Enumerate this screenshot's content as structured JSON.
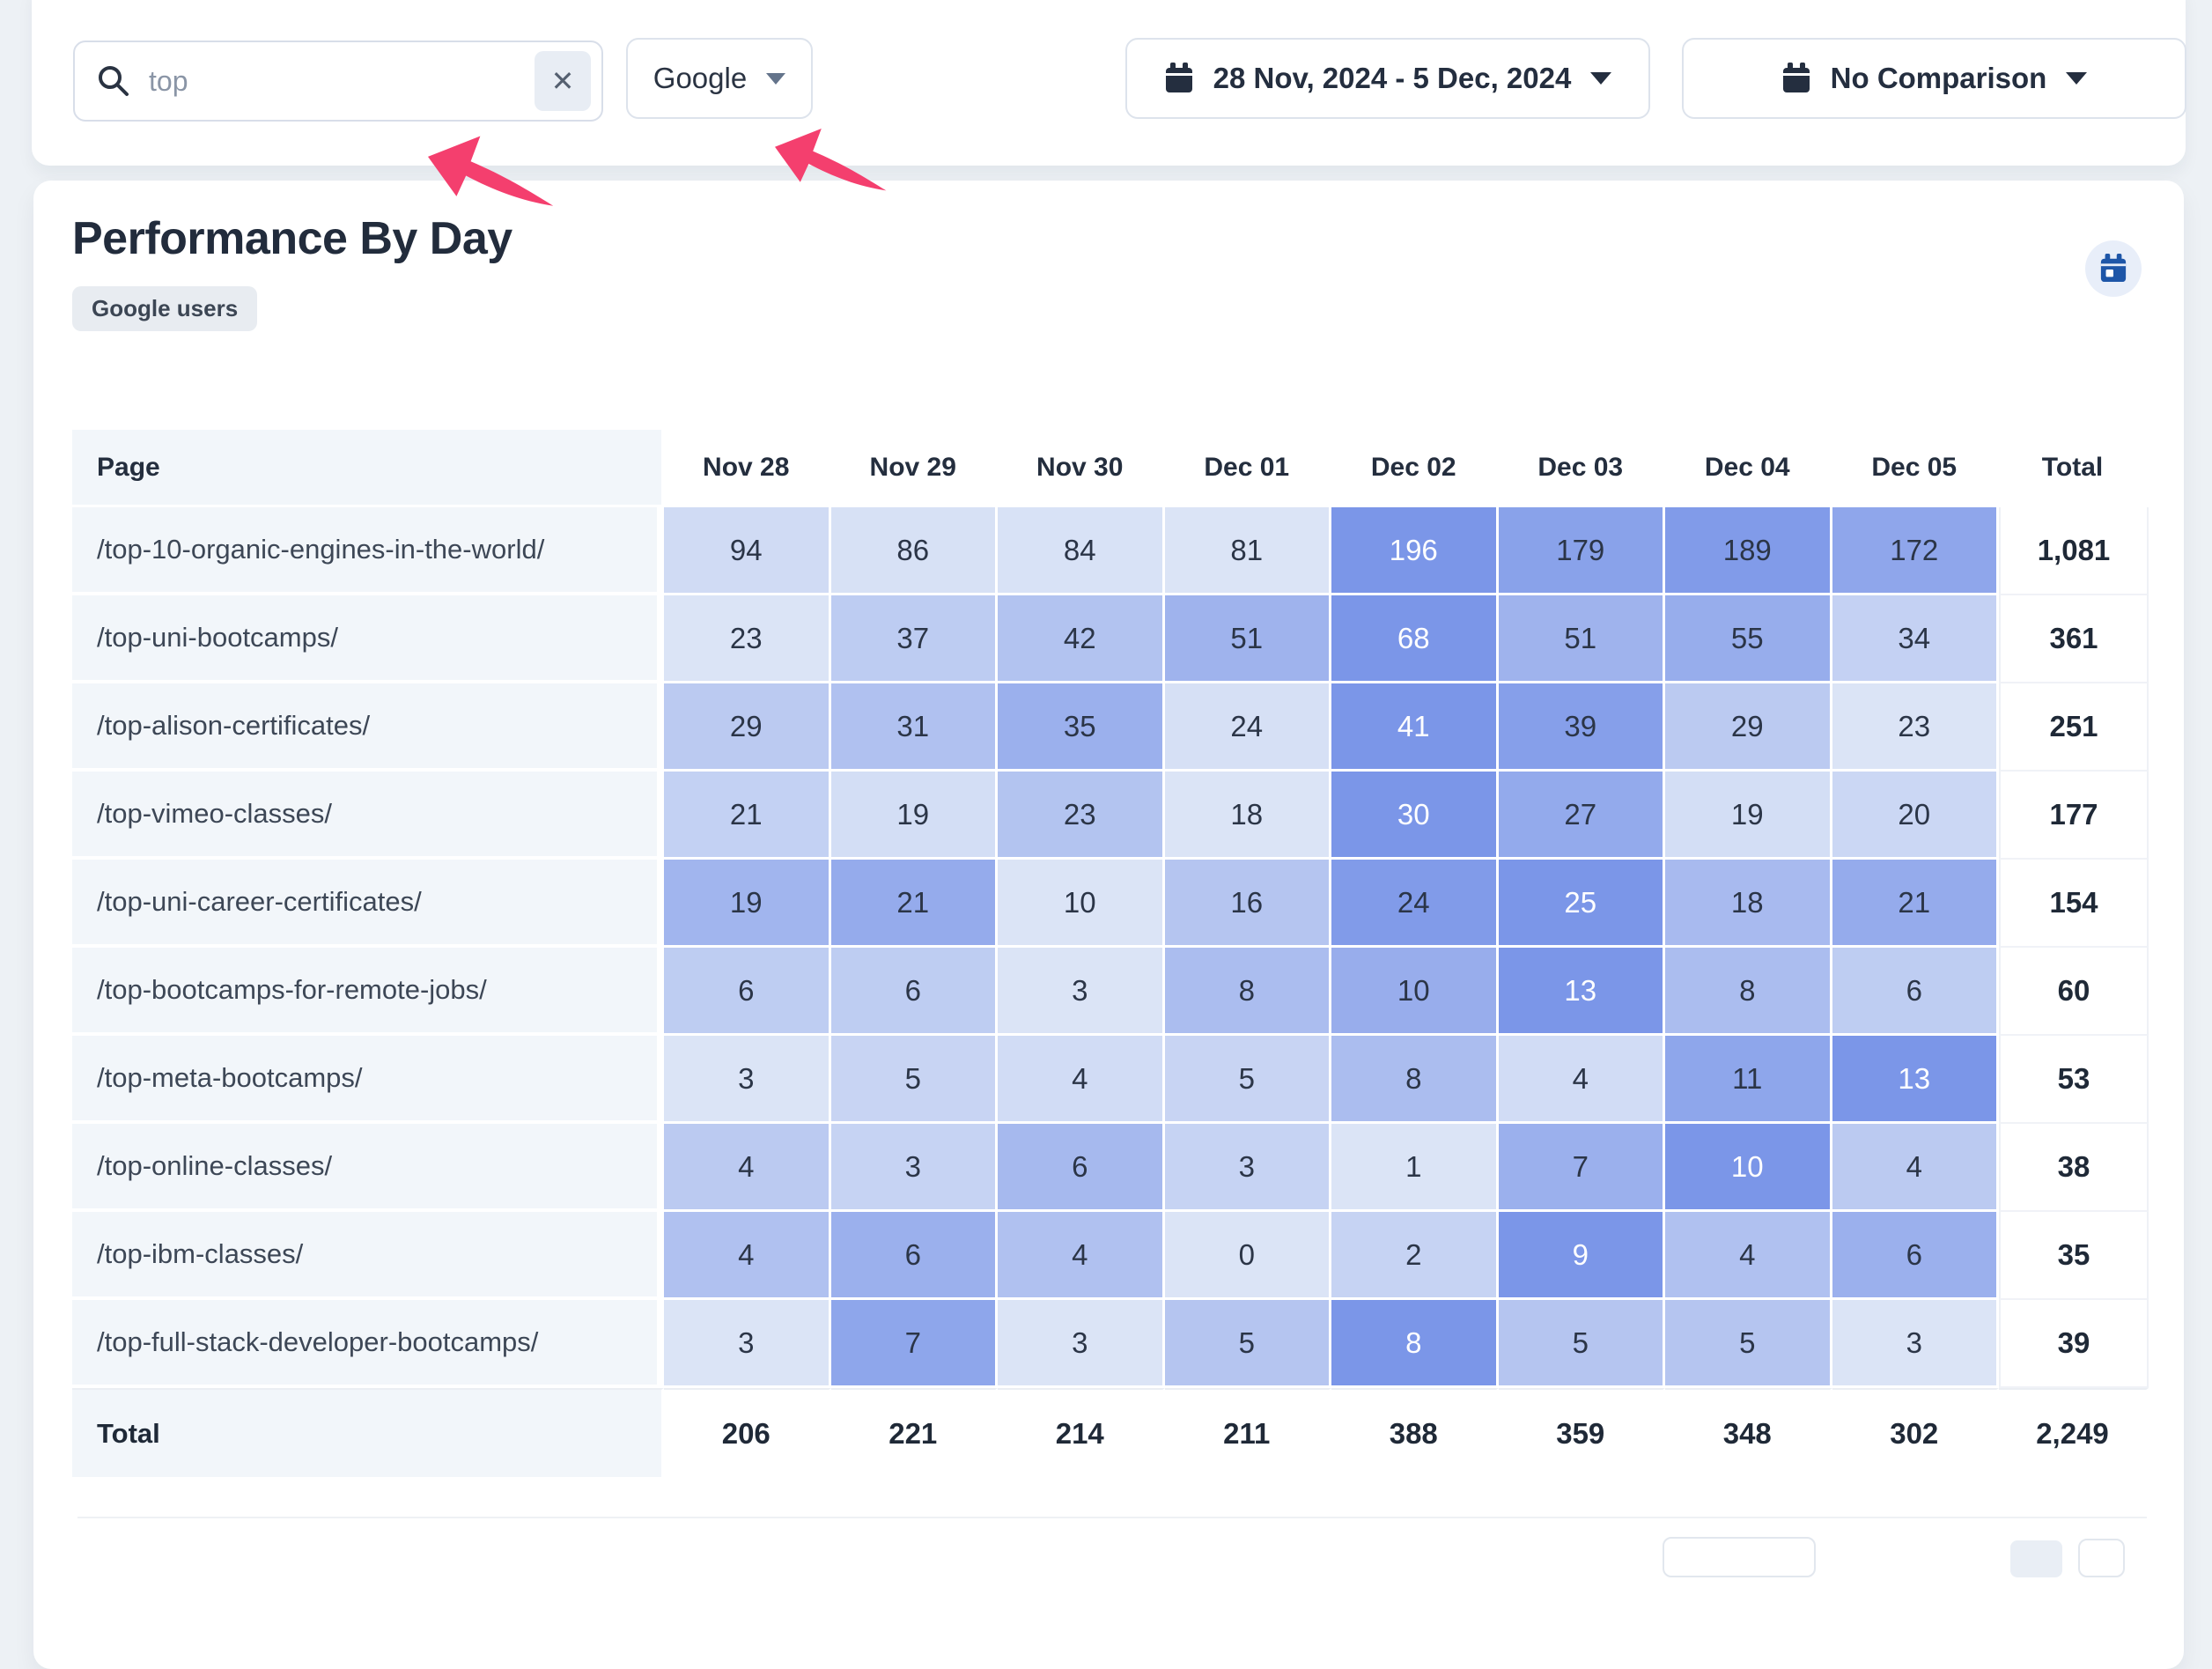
{
  "toolbar": {
    "search": {
      "value": "top",
      "clear_label": "✕"
    },
    "source_select": {
      "value": "Google"
    },
    "date_range": {
      "label": "28 Nov, 2024 - 5 Dec, 2024"
    },
    "comparison": {
      "label": "No Comparison"
    }
  },
  "card": {
    "title": "Performance By Day",
    "badge": "Google users"
  },
  "chart_data": {
    "type": "heatmap",
    "title": "Performance By Day",
    "row_header": "Page",
    "total_label": "Total",
    "total_row_label": "Total",
    "columns": [
      "Nov 28",
      "Nov 29",
      "Nov 30",
      "Dec 01",
      "Dec 02",
      "Dec 03",
      "Dec 04",
      "Dec 05"
    ],
    "rows": [
      {
        "page": "/top-10-organic-engines-in-the-world/",
        "values": [
          94,
          86,
          84,
          81,
          196,
          179,
          189,
          172
        ],
        "total": "1,081"
      },
      {
        "page": "/top-uni-bootcamps/",
        "values": [
          23,
          37,
          42,
          51,
          68,
          51,
          55,
          34
        ],
        "total": "361"
      },
      {
        "page": "/top-alison-certificates/",
        "values": [
          29,
          31,
          35,
          24,
          41,
          39,
          29,
          23
        ],
        "total": "251"
      },
      {
        "page": "/top-vimeo-classes/",
        "values": [
          21,
          19,
          23,
          18,
          30,
          27,
          19,
          20
        ],
        "total": "177"
      },
      {
        "page": "/top-uni-career-certificates/",
        "values": [
          19,
          21,
          10,
          16,
          24,
          25,
          18,
          21
        ],
        "total": "154"
      },
      {
        "page": "/top-bootcamps-for-remote-jobs/",
        "values": [
          6,
          6,
          3,
          8,
          10,
          13,
          8,
          6
        ],
        "total": "60"
      },
      {
        "page": "/top-meta-bootcamps/",
        "values": [
          3,
          5,
          4,
          5,
          8,
          4,
          11,
          13
        ],
        "total": "53"
      },
      {
        "page": "/top-online-classes/",
        "values": [
          4,
          3,
          6,
          3,
          1,
          7,
          10,
          4
        ],
        "total": "38"
      },
      {
        "page": "/top-ibm-classes/",
        "values": [
          4,
          6,
          4,
          0,
          2,
          9,
          4,
          6
        ],
        "total": "35"
      },
      {
        "page": "/top-full-stack-developer-bootcamps/",
        "values": [
          3,
          7,
          3,
          5,
          8,
          5,
          5,
          3
        ],
        "total": "39"
      }
    ],
    "column_totals": [
      "206",
      "221",
      "214",
      "211",
      "388",
      "359",
      "348",
      "302"
    ],
    "grand_total": "2,249",
    "heat_scale": {
      "light": "#dbe4f6",
      "dark": "#7b96e8"
    },
    "legend_position": "none",
    "grid": "white-gaps"
  },
  "colors": {
    "annotation_pink": "#f43f6e",
    "cell_text": "#2b3547",
    "cell_text_max": "#ffffff",
    "page_col_bg": "#f2f6fa",
    "calendar_button_icon": "#1e56a8"
  },
  "icons": {
    "search": "magnifier",
    "clear": "x-mark",
    "calendar": "calendar",
    "caret": "triangle-down"
  }
}
